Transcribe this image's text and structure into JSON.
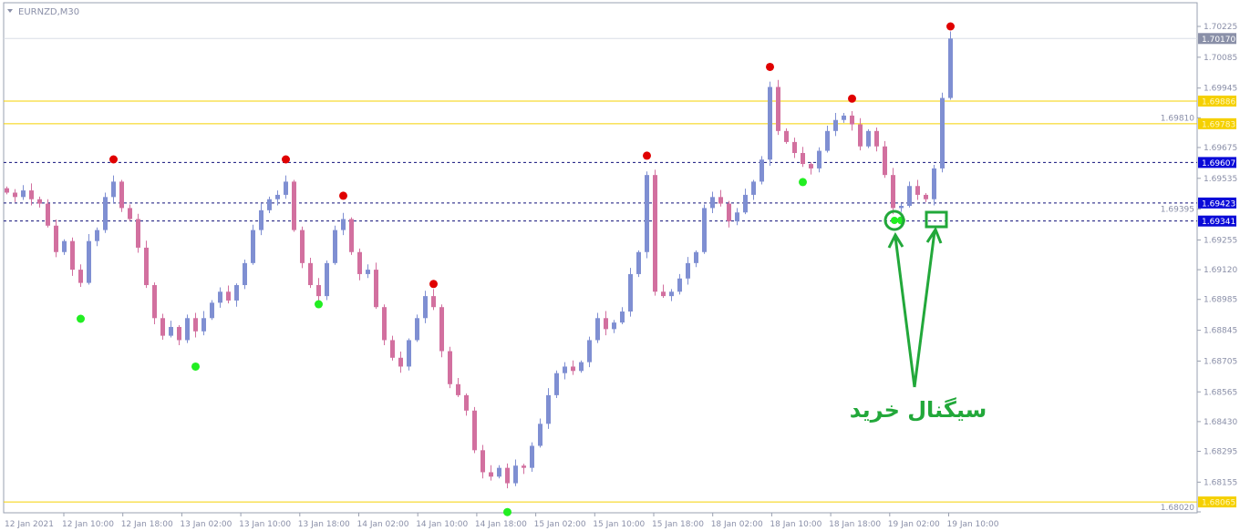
{
  "window": {
    "symbol_title": "EURNZD,M30"
  },
  "chart_data": {
    "type": "candlestick",
    "symbol": "EURNZD",
    "timeframe": "M30",
    "ylim": [
      1.68,
      1.7027
    ],
    "y_ticks": [
      "1.70225",
      "1.70085",
      "1.69945",
      "1.69810",
      "1.69675",
      "1.69535",
      "1.69395",
      "1.69255",
      "1.69120",
      "1.68985",
      "1.68845",
      "1.68705",
      "1.68565",
      "1.68430",
      "1.68295",
      "1.68155",
      "1.68020"
    ],
    "x_ticks": [
      "12 Jan 2021",
      "12 Jan 10:00",
      "12 Jan 18:00",
      "13 Jan 02:00",
      "13 Jan 10:00",
      "13 Jan 18:00",
      "14 Jan 02:00",
      "14 Jan 10:00",
      "14 Jan 18:00",
      "15 Jan 02:00",
      "15 Jan 10:00",
      "15 Jan 18:00",
      "18 Jan 02:00",
      "18 Jan 10:00",
      "18 Jan 18:00",
      "19 Jan 02:00",
      "19 Jan 10:00"
    ],
    "colors": {
      "bull": "#7f8fd2",
      "bear": "#d2709f",
      "support_line": "#f5d000",
      "dashed_line": "#10107a",
      "signal_high": "#e00000",
      "signal_low": "#22ee22",
      "annotation": "#22a83a",
      "current_price_tag": "#8a90a8"
    },
    "closes": [
      1.6947,
      1.6945,
      1.6948,
      1.6944,
      1.6942,
      1.6932,
      1.692,
      1.6925,
      1.6912,
      1.6906,
      1.6925,
      1.693,
      1.6945,
      1.6952,
      1.694,
      1.6935,
      1.6922,
      1.6905,
      1.689,
      1.6882,
      1.6886,
      1.688,
      1.689,
      1.6884,
      1.689,
      1.6897,
      1.6902,
      1.6898,
      1.6905,
      1.6915,
      1.693,
      1.6939,
      1.6944,
      1.6946,
      1.6952,
      1.693,
      1.6915,
      1.6905,
      1.69,
      1.6915,
      1.693,
      1.6935,
      1.692,
      1.691,
      1.6912,
      1.6895,
      1.688,
      1.6872,
      1.6868,
      1.688,
      1.689,
      1.69,
      1.6895,
      1.6875,
      1.686,
      1.6855,
      1.6848,
      1.683,
      1.682,
      1.6818,
      1.6822,
      1.6815,
      1.6823,
      1.6822,
      1.6832,
      1.6842,
      1.6855,
      1.6865,
      1.6868,
      1.6866,
      1.687,
      1.688,
      1.689,
      1.6885,
      1.6888,
      1.6893,
      1.691,
      1.692,
      1.6955,
      1.6902,
      1.69,
      1.6902,
      1.6908,
      1.6915,
      1.692,
      1.694,
      1.6945,
      1.6942,
      1.6934,
      1.6938,
      1.6946,
      1.6952,
      1.6962,
      1.6995,
      1.6975,
      1.697,
      1.6965,
      1.696,
      1.6958,
      1.6966,
      1.6975,
      1.698,
      1.6982,
      1.6978,
      1.6968,
      1.6975,
      1.6968,
      1.6955,
      1.694,
      1.6941,
      1.695,
      1.6946,
      1.6944,
      1.6958,
      1.699,
      1.7017
    ],
    "signals_high": [
      {
        "bar": 13,
        "price": 1.69621
      },
      {
        "bar": 34,
        "price": 1.69621
      },
      {
        "bar": 41,
        "price": 1.69456
      },
      {
        "bar": 52,
        "price": 1.69055
      },
      {
        "bar": 78,
        "price": 1.69638
      },
      {
        "bar": 93,
        "price": 1.70041
      },
      {
        "bar": 103,
        "price": 1.69897
      },
      {
        "bar": 115,
        "price": 1.70225
      }
    ],
    "signals_low": [
      {
        "bar": 9,
        "price": 1.68897
      },
      {
        "bar": 23,
        "price": 1.6868
      },
      {
        "bar": 38,
        "price": 1.68963
      },
      {
        "bar": 61,
        "price": 1.68019
      },
      {
        "bar": 97,
        "price": 1.69518
      },
      {
        "bar": 109,
        "price": 1.69344
      }
    ],
    "horizontal_lines": [
      {
        "price": 1.69886,
        "label": "1.69886",
        "style": "solid",
        "color": "#f5d000"
      },
      {
        "price": 1.69783,
        "label": "1.69783",
        "style": "solid",
        "color": "#f5d000"
      },
      {
        "price": 1.68065,
        "label": "1.68065",
        "style": "solid",
        "color": "#f5d000"
      },
      {
        "price": 1.69607,
        "label": "1.69607",
        "style": "dashed",
        "color": "#10107a"
      },
      {
        "price": 1.69423,
        "label": "1.69423",
        "style": "dashed",
        "color": "#10107a"
      },
      {
        "price": 1.69341,
        "label": "1.69341",
        "style": "dashed",
        "color": "#10107a"
      }
    ],
    "current_price": {
      "price": 1.7017,
      "label": "1.70170"
    },
    "annotation": {
      "text": "سیگنال خرید"
    }
  }
}
